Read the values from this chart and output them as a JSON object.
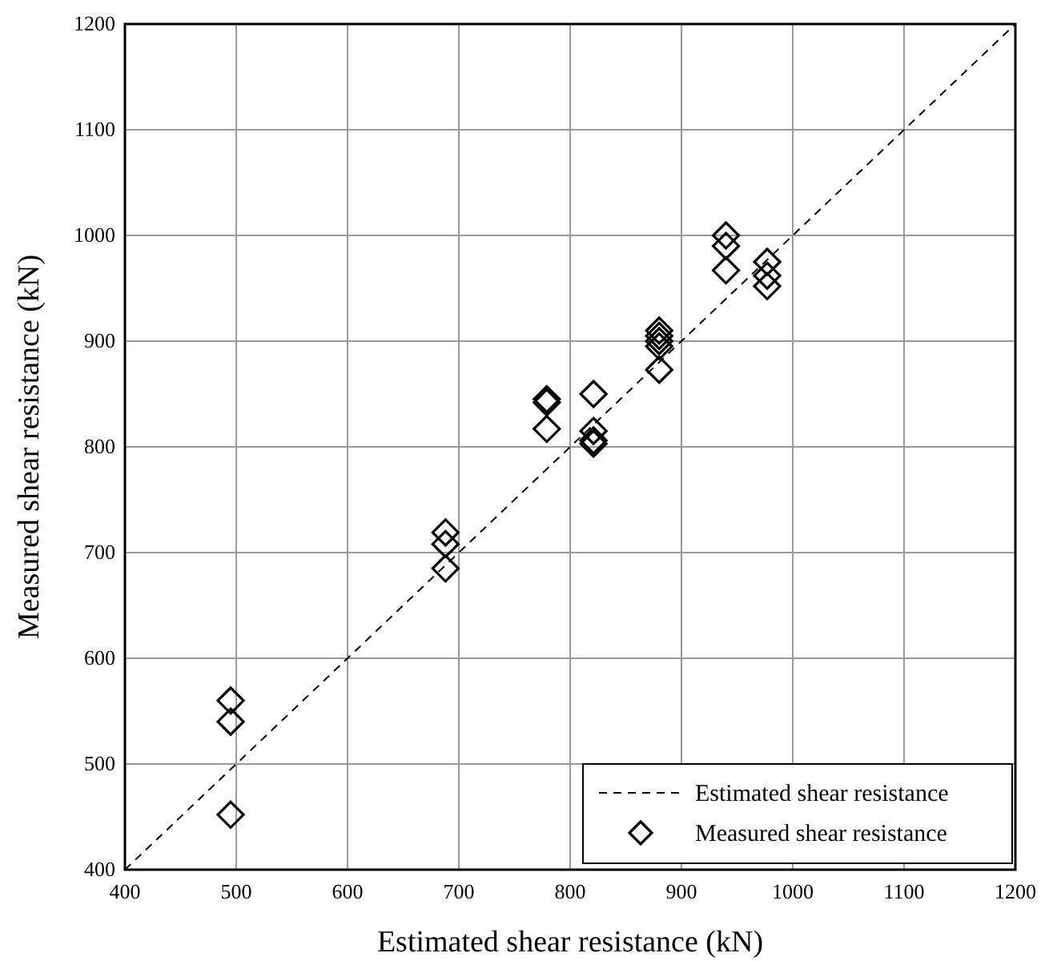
{
  "chart_data": {
    "type": "scatter",
    "xlabel": "Estimated shear resistance (kN)",
    "ylabel": "Measured shear resistance (kN)",
    "xlim": [
      400,
      1200
    ],
    "ylim": [
      400,
      1200
    ],
    "xticks": [
      400,
      500,
      600,
      700,
      800,
      900,
      1000,
      1100,
      1200
    ],
    "yticks": [
      400,
      500,
      600,
      700,
      800,
      900,
      1000,
      1100,
      1200
    ],
    "grid": true,
    "legend": "bottom right",
    "series": [
      {
        "name": "Estimated shear resistance",
        "type": "line",
        "color": "#000000",
        "line_style": "dashed",
        "marker": "none",
        "x": [
          400,
          1200
        ],
        "values": [
          400,
          1200
        ]
      },
      {
        "name": "Measured shear resistance",
        "color": "#000000",
        "marker": "diamond",
        "x": [
          495,
          495,
          495,
          688,
          688,
          688,
          779,
          779,
          779,
          821,
          821,
          821,
          821,
          880,
          880,
          880,
          880,
          880,
          940,
          940,
          940,
          977,
          977,
          977
        ],
        "values": [
          560,
          540,
          452,
          719,
          708,
          685,
          845,
          842,
          817,
          850,
          815,
          806,
          803,
          910,
          905,
          900,
          895,
          873,
          1000,
          990,
          967,
          975,
          962,
          952
        ]
      }
    ]
  }
}
